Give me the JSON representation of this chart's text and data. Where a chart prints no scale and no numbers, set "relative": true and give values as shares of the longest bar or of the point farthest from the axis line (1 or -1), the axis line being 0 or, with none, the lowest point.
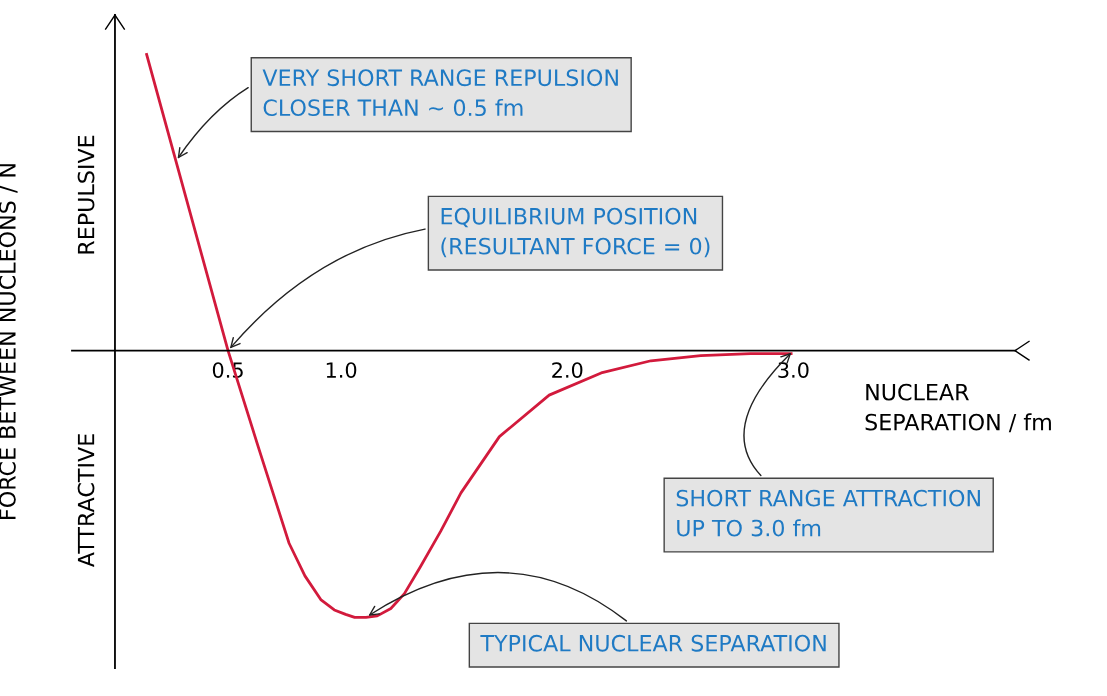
{
  "chart_data": {
    "type": "line",
    "relative": true,
    "xlabel": "NUCLEAR\nSEPARATION / fm",
    "ylabel": "FORCE BETWEEN NUCLEONS / N",
    "x": [
      0.14,
      0.5,
      0.64,
      0.77,
      0.84,
      0.91,
      0.97,
      1.02,
      1.06,
      1.11,
      1.16,
      1.22,
      1.28,
      1.35,
      1.44,
      1.53,
      1.7,
      1.92,
      2.15,
      2.37,
      2.59,
      2.81,
      2.99
    ],
    "series": [
      {
        "color": "#d21a3c",
        "values": [
          1.0,
          0,
          -0.34,
          -0.65,
          -0.76,
          -0.84,
          -0.875,
          -0.89,
          -0.9,
          -0.9,
          -0.895,
          -0.87,
          -0.82,
          -0.73,
          -0.61,
          -0.48,
          -0.29,
          -0.15,
          -0.075,
          -0.034,
          -0.017,
          -0.01,
          -0.01
        ]
      }
    ],
    "xlim": [
      -0.19,
      3.98
    ],
    "xticks": [
      0.5,
      {
        "value": 1,
        "label": "1.0"
      },
      {
        "value": 2,
        "label": "2.0"
      },
      {
        "value": 3,
        "label": "3.0"
      }
    ],
    "tick_labels": "x",
    "grid": false,
    "marker": "none",
    "line_style": "solid",
    "annotations": [
      "REPULSIVE",
      "ATTRACTIVE",
      {
        "text": "VERY SHORT RANGE REPULSION\nCLOSER THAN ∼ 0.5 fm",
        "x": 0.27,
        "y": 0.64
      },
      {
        "text": "EQUILIBRIUM POSITION\n(RESULTANT FORCE = 0)",
        "x": 0.5,
        "y": 0
      },
      {
        "text": "SHORT RANGE ATTRACTION\nUP TO 3.0 fm",
        "x": 3.0,
        "y": 0
      },
      {
        "text": "TYPICAL NUCLEAR SEPARATION",
        "x": 1.11,
        "y": -0.9
      }
    ]
  }
}
